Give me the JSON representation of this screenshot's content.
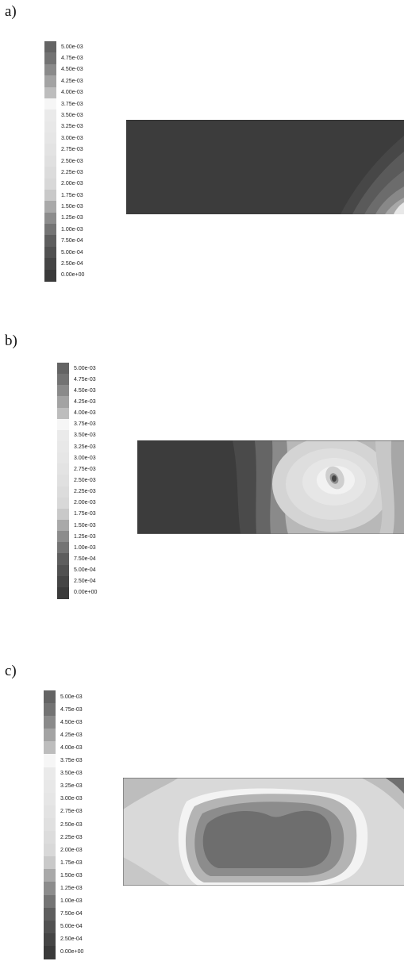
{
  "colormap": [
    "#3a3a3a",
    "#454545",
    "#515151",
    "#5e5e5e",
    "#747474",
    "#8c8c8c",
    "#a9a9a9",
    "#c9c9c9",
    "#d8d8d8",
    "#dcdcdc",
    "#e0e0e0",
    "#e3e3e3",
    "#e6e6e6",
    "#e8e8e8",
    "#eaeaea",
    "#f6f6f6",
    "#bdbdbd",
    "#a3a3a3",
    "#8a8a8a",
    "#737373",
    "#646464"
  ],
  "panels": [
    {
      "id": "a",
      "label": "a)",
      "legend_ticks": [
        "5.00e-03",
        "4.75e-03",
        "4.50e-03",
        "4.25e-03",
        "4.00e-03",
        "3.75e-03",
        "3.50e-03",
        "3.25e-03",
        "3.00e-03",
        "2.75e-03",
        "2.50e-03",
        "2.25e-03",
        "2.00e-03",
        "1.75e-03",
        "1.50e-03",
        "1.25e-03",
        "1.00e-03",
        "7.50e-04",
        "5.00e-04",
        "2.50e-04",
        "0.00e+00"
      ]
    },
    {
      "id": "b",
      "label": "b)",
      "legend_ticks": [
        "5.00e-03",
        "4.75e-03",
        "4.50e-03",
        "4.25e-03",
        "4.00e-03",
        "3.75e-03",
        "3.50e-03",
        "3.25e-03",
        "3.00e-03",
        "2.75e-03",
        "2.50e-03",
        "2.25e-03",
        "2.00e-03",
        "1.75e-03",
        "1.50e-03",
        "1.25e-03",
        "1.00e-03",
        "7.50e-04",
        "5.00e-04",
        "2.50e-04",
        "0.00e+00"
      ]
    },
    {
      "id": "c",
      "label": "c)",
      "legend_ticks": [
        "5.00e-03",
        "4.75e-03",
        "4.50e-03",
        "4.25e-03",
        "4.00e-03",
        "3.75e-03",
        "3.50e-03",
        "3.25e-03",
        "3.00e-03",
        "2.75e-03",
        "2.50e-03",
        "2.25e-03",
        "2.00e-03",
        "1.75e-03",
        "1.50e-03",
        "1.25e-03",
        "1.00e-03",
        "7.50e-04",
        "5.00e-04",
        "2.50e-04",
        "0.00e+00"
      ]
    }
  ]
}
